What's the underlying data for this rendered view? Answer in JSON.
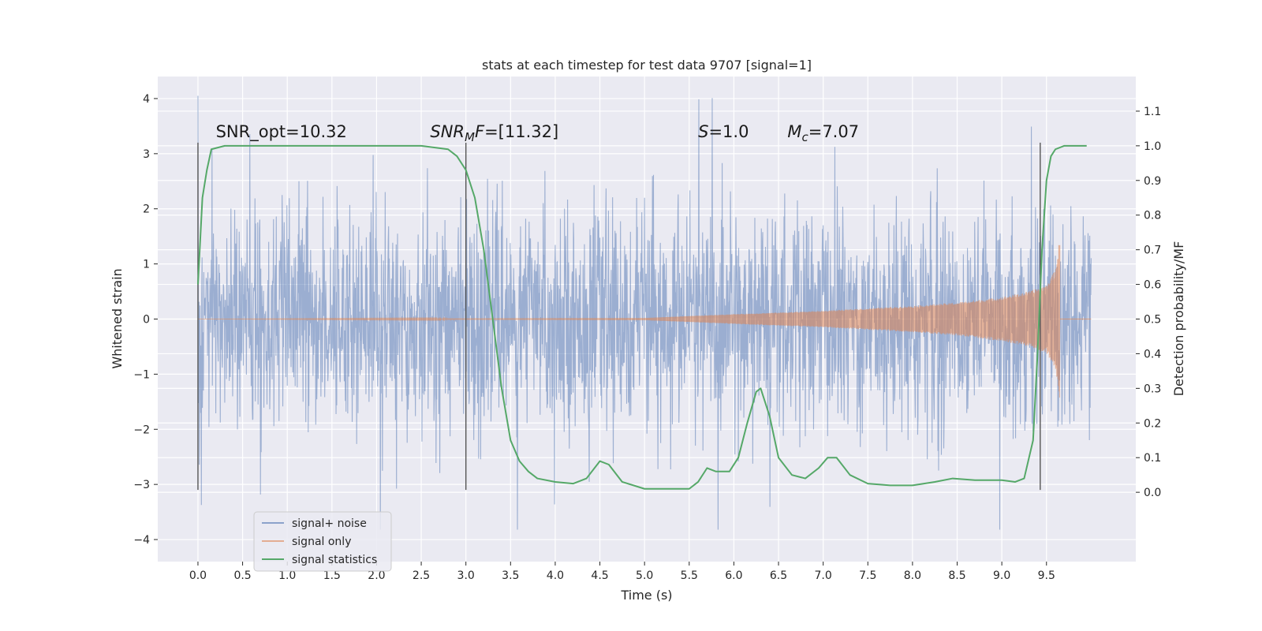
{
  "chart_data": {
    "type": "line",
    "title": "stats at each timestep for test data 9707 [signal=1]",
    "xlabel": "Time (s)",
    "ylabel_left": "Whitened strain",
    "ylabel_right": "Detection probability/MF",
    "xlim": [
      -0.45,
      10.5
    ],
    "ylim_left": [
      -4.4,
      4.4
    ],
    "ylim_right": [
      -0.2,
      1.2
    ],
    "x_ticks": [
      "0.0",
      "0.5",
      "1.0",
      "1.5",
      "2.0",
      "2.5",
      "3.0",
      "3.5",
      "4.0",
      "4.5",
      "5.0",
      "5.5",
      "6.0",
      "6.5",
      "7.0",
      "7.5",
      "8.0",
      "8.5",
      "9.0",
      "9.5"
    ],
    "y_ticks_left": [
      "4",
      "3",
      "2",
      "1",
      "0",
      "−1",
      "−2",
      "−3",
      "−4"
    ],
    "y_ticks_right": [
      "1.1",
      "1.0",
      "0.9",
      "0.8",
      "0.7",
      "0.6",
      "0.5",
      "0.4",
      "0.3",
      "0.2",
      "0.1",
      "0.0"
    ],
    "grid": true,
    "legend_position": "lower-left",
    "series": [
      {
        "name": "signal+ noise",
        "color": "#4c72b0",
        "axis": "left",
        "x_range": [
          0.0,
          10.0
        ],
        "description_values": {
          "typical_abs": 1.3,
          "peak_max": 4.05,
          "peak_min": -3.82
        }
      },
      {
        "name": "signal only",
        "color": "#dd8452",
        "axis": "left",
        "x_range": [
          0.0,
          9.65
        ],
        "envelope": [
          [
            0.0,
            0.0
          ],
          [
            5.0,
            0.02
          ],
          [
            6.0,
            0.09
          ],
          [
            7.0,
            0.15
          ],
          [
            8.0,
            0.24
          ],
          [
            8.5,
            0.3
          ],
          [
            9.0,
            0.4
          ],
          [
            9.3,
            0.5
          ],
          [
            9.5,
            0.62
          ],
          [
            9.6,
            0.9
          ],
          [
            9.65,
            1.5
          ]
        ]
      },
      {
        "name": "signal statistics",
        "color": "#55a868",
        "axis": "right",
        "points": [
          [
            0.0,
            0.6
          ],
          [
            0.05,
            0.85
          ],
          [
            0.1,
            0.93
          ],
          [
            0.15,
            0.99
          ],
          [
            0.3,
            1.0
          ],
          [
            1.0,
            1.0
          ],
          [
            2.0,
            1.0
          ],
          [
            2.5,
            1.0
          ],
          [
            2.8,
            0.99
          ],
          [
            2.9,
            0.97
          ],
          [
            3.0,
            0.93
          ],
          [
            3.1,
            0.85
          ],
          [
            3.2,
            0.7
          ],
          [
            3.3,
            0.5
          ],
          [
            3.4,
            0.3
          ],
          [
            3.5,
            0.15
          ],
          [
            3.6,
            0.09
          ],
          [
            3.7,
            0.06
          ],
          [
            3.8,
            0.04
          ],
          [
            4.0,
            0.03
          ],
          [
            4.2,
            0.025
          ],
          [
            4.35,
            0.04
          ],
          [
            4.5,
            0.09
          ],
          [
            4.6,
            0.08
          ],
          [
            4.75,
            0.03
          ],
          [
            5.0,
            0.01
          ],
          [
            5.5,
            0.01
          ],
          [
            5.6,
            0.03
          ],
          [
            5.7,
            0.07
          ],
          [
            5.8,
            0.06
          ],
          [
            5.95,
            0.06
          ],
          [
            6.05,
            0.1
          ],
          [
            6.15,
            0.2
          ],
          [
            6.25,
            0.29
          ],
          [
            6.3,
            0.3
          ],
          [
            6.4,
            0.22
          ],
          [
            6.5,
            0.1
          ],
          [
            6.65,
            0.05
          ],
          [
            6.8,
            0.04
          ],
          [
            6.95,
            0.07
          ],
          [
            7.05,
            0.1
          ],
          [
            7.15,
            0.1
          ],
          [
            7.3,
            0.05
          ],
          [
            7.5,
            0.025
          ],
          [
            7.75,
            0.02
          ],
          [
            8.0,
            0.02
          ],
          [
            8.25,
            0.03
          ],
          [
            8.45,
            0.04
          ],
          [
            8.7,
            0.035
          ],
          [
            9.0,
            0.035
          ],
          [
            9.15,
            0.03
          ],
          [
            9.25,
            0.04
          ],
          [
            9.35,
            0.15
          ],
          [
            9.4,
            0.4
          ],
          [
            9.45,
            0.7
          ],
          [
            9.5,
            0.9
          ],
          [
            9.55,
            0.97
          ],
          [
            9.6,
            0.99
          ],
          [
            9.7,
            1.0
          ],
          [
            9.95,
            1.0
          ]
        ]
      }
    ],
    "vertical_lines": [
      {
        "x": 0.0,
        "y_range": [
          -3.1,
          3.2
        ]
      },
      {
        "x": 3.0,
        "y_range": [
          -3.1,
          3.2
        ]
      },
      {
        "x": 9.43,
        "y_range": [
          -3.1,
          3.2
        ]
      }
    ],
    "annotations": [
      {
        "parts": [
          {
            "t": "SNR_opt=10.32",
            "i": false
          }
        ],
        "x": 0.2,
        "y": 3.3
      },
      {
        "parts": [
          {
            "t": "SNR",
            "i": true
          },
          {
            "t": "M",
            "i": true,
            "sub": true
          },
          {
            "t": "F",
            "i": true
          },
          {
            "t": "=[11.32]",
            "i": false
          }
        ],
        "x": 2.6,
        "y": 3.3
      },
      {
        "parts": [
          {
            "t": "S",
            "i": true
          },
          {
            "t": "=1.0",
            "i": false
          }
        ],
        "x": 5.6,
        "y": 3.3
      },
      {
        "parts": [
          {
            "t": "M",
            "i": true
          },
          {
            "t": "c",
            "i": true,
            "sub": true
          },
          {
            "t": "=7.07",
            "i": false
          }
        ],
        "x": 6.6,
        "y": 3.3
      }
    ]
  }
}
